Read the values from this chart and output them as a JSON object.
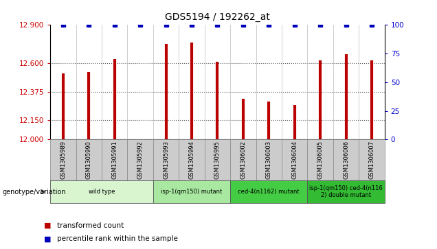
{
  "title": "GDS5194 / 192262_at",
  "samples": [
    "GSM1305989",
    "GSM1305990",
    "GSM1305991",
    "GSM1305992",
    "GSM1305993",
    "GSM1305994",
    "GSM1305995",
    "GSM1306002",
    "GSM1306003",
    "GSM1306004",
    "GSM1306005",
    "GSM1306006",
    "GSM1306007"
  ],
  "transformed_counts": [
    12.52,
    12.53,
    12.63,
    12.0,
    12.75,
    12.76,
    12.61,
    12.32,
    12.3,
    12.27,
    12.62,
    12.67,
    12.62
  ],
  "percentile_ranks": [
    100,
    100,
    100,
    100,
    100,
    100,
    100,
    100,
    100,
    100,
    100,
    100,
    100
  ],
  "ylim_left": [
    12,
    12.9
  ],
  "ylim_right": [
    0,
    100
  ],
  "yticks_left": [
    12,
    12.15,
    12.375,
    12.6,
    12.9
  ],
  "yticks_right": [
    0,
    25,
    50,
    75,
    100
  ],
  "bar_color": "#bb0000",
  "dot_color": "#0000bb",
  "groups": [
    {
      "label": "wild type",
      "indices": [
        0,
        1,
        2,
        3
      ],
      "color": "#d8f5d0"
    },
    {
      "label": "isp-1(qm150) mutant",
      "indices": [
        4,
        5,
        6
      ],
      "color": "#a8e8a0"
    },
    {
      "label": "ced-4(n1162) mutant",
      "indices": [
        7,
        8,
        9
      ],
      "color": "#44cc44"
    },
    {
      "label": "isp-1(qm150) ced-4(n116\n2) double mutant",
      "indices": [
        10,
        11,
        12
      ],
      "color": "#33bb33"
    }
  ],
  "genotype_label": "genotype/variation",
  "legend_items": [
    {
      "label": "transformed count",
      "color": "#bb0000"
    },
    {
      "label": "percentile rank within the sample",
      "color": "#0000bb"
    }
  ],
  "grid_color": "#555555",
  "bg_color_sample_row": "#cccccc",
  "xlabel_color": "#cc0000",
  "ylabel_right_color": "#0000cc"
}
